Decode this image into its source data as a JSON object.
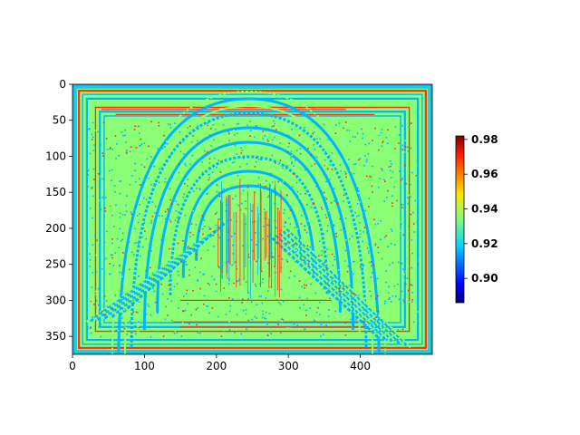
{
  "chart_data": {
    "type": "heatmap",
    "title": "",
    "xlabel": "",
    "ylabel": "",
    "image_shape": [
      375,
      500
    ],
    "x_axis": {
      "range": [
        0,
        500
      ],
      "ticks": [
        0,
        100,
        200,
        300,
        400
      ],
      "tick_labels": [
        "0",
        "100",
        "200",
        "300",
        "400"
      ]
    },
    "y_axis": {
      "range": [
        375,
        0
      ],
      "inverted": true,
      "ticks": [
        0,
        50,
        100,
        150,
        200,
        250,
        300,
        350
      ],
      "tick_labels": [
        "0",
        "50",
        "100",
        "150",
        "200",
        "250",
        "300",
        "350"
      ]
    },
    "colormap": "jet",
    "colorbar": {
      "range": [
        0.886,
        0.982
      ],
      "ticks": [
        0.9,
        0.92,
        0.94,
        0.96,
        0.98
      ],
      "tick_labels": [
        "0.90",
        "0.92",
        "0.94",
        "0.96",
        "0.98"
      ]
    },
    "background_value": 0.935,
    "dominant_values": {
      "background": 0.935,
      "edges": 0.915,
      "highlights": 0.965
    },
    "colors": {
      "jet_low": "#00007f",
      "jet_blue": "#0080ff",
      "jet_green": "#7dff7a",
      "jet_yellow": "#ffe600",
      "jet_red": "#ff1a00",
      "jet_high": "#7f0000"
    },
    "grid": false,
    "legend": "none"
  }
}
